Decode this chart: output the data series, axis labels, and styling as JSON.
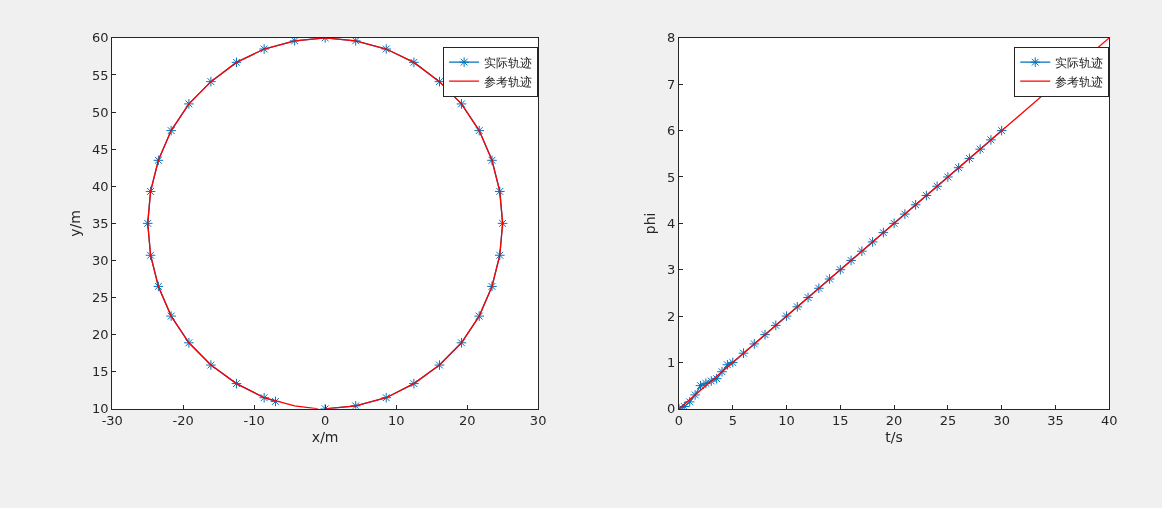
{
  "chart_data": [
    {
      "type": "line",
      "xlabel": "x/m",
      "ylabel": "y/m",
      "xlim": [
        -30,
        30
      ],
      "xticks": [
        -30,
        -20,
        -10,
        0,
        10,
        20,
        30
      ],
      "ylim": [
        10,
        60
      ],
      "yticks": [
        10,
        15,
        20,
        25,
        30,
        35,
        40,
        45,
        50,
        55,
        60
      ],
      "legend": "top right",
      "series": [
        {
          "name": "实际轨迹",
          "color": "#0072bd",
          "marker": "cross",
          "x": [
            0,
            4.3,
            8.6,
            12.5,
            16.1,
            19.2,
            21.7,
            23.5,
            24.6,
            25,
            24.6,
            23.5,
            21.7,
            19.2,
            16.1,
            12.5,
            8.6,
            4.3,
            0,
            -4.3,
            -8.6,
            -12.5,
            -16.1,
            -19.2,
            -21.7,
            -23.5,
            -24.6,
            -25,
            -24.6,
            -23.5,
            -21.7,
            -19.2,
            -16.1,
            -12.5,
            -8.6,
            -7
          ],
          "values": [
            10,
            10.4,
            11.5,
            13.4,
            15.9,
            18.9,
            22.5,
            26.5,
            30.7,
            35,
            39.3,
            43.5,
            47.5,
            51.1,
            54.1,
            56.7,
            58.5,
            59.6,
            60,
            59.6,
            58.5,
            56.7,
            54.1,
            51.1,
            47.5,
            43.5,
            39.3,
            35,
            30.7,
            26.5,
            22.5,
            18.9,
            15.9,
            13.4,
            11.5,
            11
          ]
        },
        {
          "name": "参考轨迹",
          "color": "#ff0000",
          "marker": "none",
          "x": [
            0,
            4.3,
            8.6,
            12.5,
            16.1,
            19.2,
            21.7,
            23.5,
            24.6,
            25,
            24.6,
            23.5,
            21.7,
            19.2,
            16.1,
            12.5,
            8.6,
            4.3,
            0,
            -4.3,
            -8.6,
            -12.5,
            -16.1,
            -19.2,
            -21.7,
            -23.5,
            -24.6,
            -25,
            -24.6,
            -23.5,
            -21.7,
            -19.2,
            -16.1,
            -12.5,
            -8.6,
            -4.3,
            -1
          ],
          "values": [
            10,
            10.4,
            11.5,
            13.4,
            15.9,
            18.9,
            22.5,
            26.5,
            30.7,
            35,
            39.3,
            43.5,
            47.5,
            51.1,
            54.1,
            56.7,
            58.5,
            59.6,
            60,
            59.6,
            58.5,
            56.7,
            54.1,
            51.1,
            47.5,
            43.5,
            39.3,
            35,
            30.7,
            26.5,
            22.5,
            18.9,
            15.9,
            13.4,
            11.5,
            10.4,
            10
          ]
        }
      ]
    },
    {
      "type": "line",
      "xlabel": "t/s",
      "ylabel": "phi",
      "xlim": [
        0,
        40
      ],
      "xticks": [
        0,
        5,
        10,
        15,
        20,
        25,
        30,
        35,
        40
      ],
      "ylim": [
        0,
        8
      ],
      "yticks": [
        0,
        1,
        2,
        3,
        4,
        5,
        6,
        7,
        8
      ],
      "legend": "top right",
      "series": [
        {
          "name": "实际轨迹",
          "color": "#0072bd",
          "marker": "cross",
          "x": [
            0,
            0.5,
            1,
            1.5,
            2,
            2.5,
            3,
            3.5,
            4,
            4.5,
            5,
            6,
            7,
            8,
            9,
            10,
            11,
            12,
            13,
            14,
            15,
            16,
            17,
            18,
            19,
            20,
            21,
            22,
            23,
            24,
            25,
            26,
            27,
            28,
            29,
            30
          ],
          "values": [
            0,
            0.05,
            0.15,
            0.3,
            0.5,
            0.55,
            0.6,
            0.65,
            0.8,
            0.95,
            1.0,
            1.2,
            1.4,
            1.6,
            1.8,
            2.0,
            2.2,
            2.4,
            2.6,
            2.8,
            3.0,
            3.2,
            3.4,
            3.6,
            3.8,
            4.0,
            4.2,
            4.4,
            4.6,
            4.8,
            5.0,
            5.2,
            5.4,
            5.6,
            5.8,
            6.0
          ]
        },
        {
          "name": "参考轨迹",
          "color": "#ff0000",
          "marker": "none",
          "x": [
            0,
            40
          ],
          "values": [
            0,
            8
          ]
        }
      ]
    }
  ]
}
